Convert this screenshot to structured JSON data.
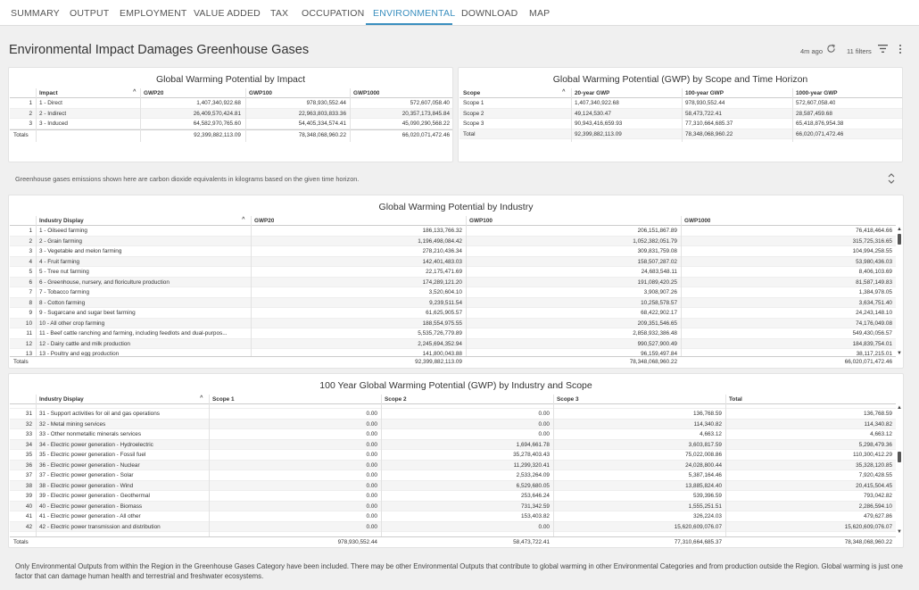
{
  "nav": {
    "tabs": [
      "SUMMARY",
      "OUTPUT",
      "EMPLOYMENT",
      "VALUE ADDED",
      "TAX",
      "OCCUPATION",
      "ENVIRONMENTAL",
      "DOWNLOAD",
      "MAP"
    ],
    "active": "ENVIRONMENTAL"
  },
  "header": {
    "title": "Environmental Impact Damages Greenhouse Gases",
    "updated": "4m ago",
    "filters": "11 filters",
    "refresh_icon": "refresh-icon",
    "filter_icon": "filter-icon",
    "menu_icon": "kebab-menu-icon"
  },
  "gwp_impact": {
    "title": "Global Warming Potential by Impact",
    "columns": [
      "Impact",
      "GWP20",
      "GWP100",
      "GWP1000"
    ],
    "rows": [
      [
        "1",
        "1 - Direct",
        "1,407,340,922.68",
        "978,930,552.44",
        "572,607,058.40"
      ],
      [
        "2",
        "2 - Indirect",
        "26,409,570,424.81",
        "22,963,803,833.36",
        "20,357,173,845.84"
      ],
      [
        "3",
        "3 - Induced",
        "64,582,970,765.60",
        "54,405,334,574.41",
        "45,090,290,568.22"
      ]
    ],
    "totals": [
      "Totals",
      "92,399,882,113.09",
      "78,348,068,960.22",
      "66,020,071,472.46"
    ]
  },
  "gwp_scope": {
    "title": "Global Warming Potential (GWP) by Scope and Time Horizon",
    "columns": [
      "Scope",
      "20-year GWP",
      "100-year GWP",
      "1000-year GWP"
    ],
    "rows": [
      [
        "Scope 1",
        "1,407,340,922.68",
        "978,930,552.44",
        "572,607,058.40"
      ],
      [
        "Scope 2",
        "49,124,530.47",
        "58,473,722.41",
        "28,587,459.68"
      ],
      [
        "Scope 3",
        "90,943,416,659.93",
        "77,310,664,685.37",
        "65,418,876,954.38"
      ],
      [
        "Total",
        "92,399,882,113.09",
        "78,348,068,960.22",
        "66,020,071,472.46"
      ]
    ]
  },
  "note_ghg": "Greenhouse gases emissions shown here are carbon dioxide equivalents in kilograms based on the given time horizon.",
  "gwp_industry": {
    "title": "Global Warming Potential by Industry",
    "columns": [
      "Industry Display",
      "GWP20",
      "GWP100",
      "GWP1000"
    ],
    "rows": [
      [
        "1",
        "1 - Oilseed farming",
        "186,133,766.32",
        "206,151,867.89",
        "76,418,464.66"
      ],
      [
        "2",
        "2 - Grain farming",
        "1,196,498,084.42",
        "1,052,382,051.79",
        "315,725,316.65"
      ],
      [
        "3",
        "3 - Vegetable and melon farming",
        "278,210,436.34",
        "309,831,759.08",
        "104,994,258.55"
      ],
      [
        "4",
        "4 - Fruit farming",
        "142,401,483.03",
        "158,507,287.02",
        "53,980,436.03"
      ],
      [
        "5",
        "5 - Tree nut farming",
        "22,175,471.69",
        "24,683,548.11",
        "8,406,103.69"
      ],
      [
        "6",
        "6 - Greenhouse, nursery, and floriculture production",
        "174,289,121.20",
        "191,089,420.25",
        "81,587,149.83"
      ],
      [
        "7",
        "7 - Tobacco farming",
        "3,520,604.10",
        "3,908,907.26",
        "1,384,978.05"
      ],
      [
        "8",
        "8 - Cotton farming",
        "9,239,511.54",
        "10,258,578.57",
        "3,634,751.40"
      ],
      [
        "9",
        "9 - Sugarcane and sugar beet farming",
        "61,625,905.57",
        "68,422,902.17",
        "24,243,148.10"
      ],
      [
        "10",
        "10 - All other crop farming",
        "188,554,975.55",
        "209,351,546.65",
        "74,176,049.08"
      ],
      [
        "11",
        "11 - Beef cattle ranching and farming, including feedlots and dual-purpos...",
        "5,535,726,779.89",
        "2,858,932,386.48",
        "549,430,056.57"
      ],
      [
        "12",
        "12 - Dairy cattle and milk production",
        "2,245,694,352.94",
        "990,527,900.49",
        "184,839,754.01"
      ],
      [
        "13",
        "13 - Poultry and egg production",
        "141,800,043.88",
        "96,159,497.84",
        "38,117,215.01"
      ]
    ],
    "totals": [
      "Totals",
      "92,399,882,113.09",
      "78,348,068,960.22",
      "66,020,071,472.46"
    ]
  },
  "gwp100_scope": {
    "title": "100 Year Global Warming Potential (GWP) by Industry and Scope",
    "columns": [
      "Industry Display",
      "Scope 1",
      "Scope 2",
      "Scope 3",
      "Total"
    ],
    "rows": [
      [
        "31",
        "31 - Support activities for oil and gas operations",
        "0.00",
        "0.00",
        "136,768.59",
        "136,768.59"
      ],
      [
        "32",
        "32 - Metal mining services",
        "0.00",
        "0.00",
        "114,340.82",
        "114,340.82"
      ],
      [
        "33",
        "33 - Other nonmetallic minerals services",
        "0.00",
        "0.00",
        "4,663.12",
        "4,663.12"
      ],
      [
        "34",
        "34 - Electric power generation - Hydroelectric",
        "0.00",
        "1,694,661.78",
        "3,603,817.59",
        "5,298,479.36"
      ],
      [
        "35",
        "35 - Electric power generation - Fossil fuel",
        "0.00",
        "35,278,403.43",
        "75,022,008.86",
        "110,300,412.29"
      ],
      [
        "36",
        "36 - Electric power generation - Nuclear",
        "0.00",
        "11,299,320.41",
        "24,028,800.44",
        "35,328,120.85"
      ],
      [
        "37",
        "37 - Electric power generation - Solar",
        "0.00",
        "2,533,264.09",
        "5,387,164.46",
        "7,920,428.55"
      ],
      [
        "38",
        "38 - Electric power generation - Wind",
        "0.00",
        "6,529,680.05",
        "13,885,824.40",
        "20,415,504.45"
      ],
      [
        "39",
        "39 - Electric power generation - Geothermal",
        "0.00",
        "253,646.24",
        "539,396.59",
        "793,042.82"
      ],
      [
        "40",
        "40 - Electric power generation - Biomass",
        "0.00",
        "731,342.59",
        "1,555,251.51",
        "2,286,594.10"
      ],
      [
        "41",
        "41 - Electric power generation - All other",
        "0.00",
        "153,403.82",
        "326,224.03",
        "479,627.86"
      ],
      [
        "42",
        "42 - Electric power transmission and distribution",
        "0.00",
        "0.00",
        "15,620,609,076.07",
        "15,620,609,076.07"
      ]
    ],
    "totals": [
      "Totals",
      "978,930,552.44",
      "58,473,722.41",
      "77,310,664,685.37",
      "78,348,068,960.22"
    ]
  },
  "note_bottom": "Only Environmental Outputs from within the Region in the Greenhouse Gases Category have been included. There may be other Environmental Outputs that contribute to global warming in other Environmental Categories and from production outside the Region. Global warming is just one factor that can damage human health and terrestrial and freshwater ecosystems."
}
